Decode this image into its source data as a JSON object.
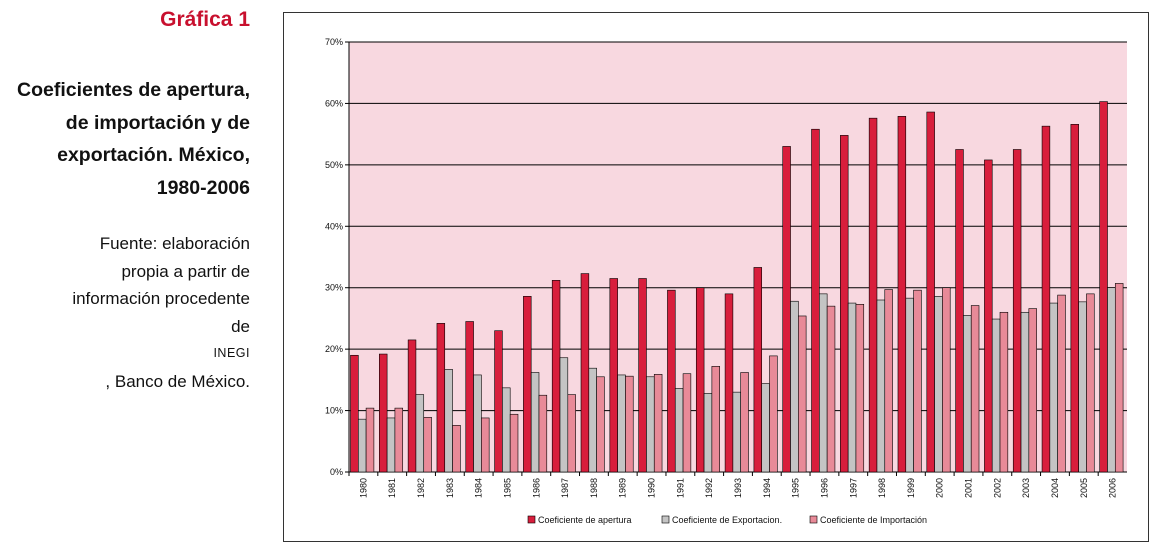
{
  "figure": {
    "label": "Gráfica 1",
    "title_lines": [
      "Coeficientes de apertura,",
      "de importación y de",
      "exportación. México,",
      "1980-2006"
    ],
    "source_lines": [
      "Fuente: elaboración",
      "propia a partir de",
      "información procedente"
    ],
    "source_last": {
      "prefix": "de ",
      "org": "INEGI",
      "suffix": ", Banco de México."
    }
  },
  "colors": {
    "plot_bg": "#f8d8e0",
    "apertura": "#d81e3c",
    "exportacion": "#c4c4c4",
    "importacion": "#e88a98",
    "grid": "#000000"
  },
  "chart_data": {
    "type": "bar",
    "categories": [
      "1980",
      "1981",
      "1982",
      "1983",
      "1984",
      "1985",
      "1986",
      "1987",
      "1988",
      "1989",
      "1990",
      "1991",
      "1992",
      "1993",
      "1994",
      "1995",
      "1996",
      "1997",
      "1998",
      "1999",
      "2000",
      "2001",
      "2002",
      "2003",
      "2004",
      "2005",
      "2006"
    ],
    "series": [
      {
        "name": "Coeficiente de apertura",
        "color": "#d81e3c",
        "values": [
          19,
          19.2,
          21.5,
          24.2,
          24.5,
          23,
          28.6,
          31.2,
          32.3,
          31.5,
          31.5,
          29.6,
          30,
          29,
          33.3,
          53,
          55.8,
          54.8,
          57.6,
          57.9,
          58.6,
          52.5,
          50.8,
          52.5,
          56.3,
          56.6,
          60.3
        ]
      },
      {
        "name": "Coeficiente de Exportacion.",
        "color": "#c4c4c4",
        "values": [
          8.6,
          8.8,
          12.6,
          16.7,
          15.8,
          13.7,
          16.2,
          18.6,
          16.9,
          15.8,
          15.5,
          13.6,
          12.8,
          13,
          14.4,
          27.8,
          29,
          27.5,
          28,
          28.3,
          28.6,
          25.5,
          24.9,
          26,
          27.5,
          27.7,
          30
        ]
      },
      {
        "name": "Coeficiente de Importación",
        "color": "#e88a98",
        "values": [
          10.4,
          10.4,
          8.9,
          7.6,
          8.8,
          9.4,
          12.5,
          12.6,
          15.5,
          15.6,
          15.9,
          16,
          17.2,
          16.2,
          18.9,
          25.4,
          27,
          27.3,
          29.7,
          29.6,
          30,
          27.1,
          26,
          26.6,
          28.8,
          29,
          30.7
        ]
      }
    ],
    "ylim": [
      0,
      70
    ],
    "yticks": [
      0,
      10,
      20,
      30,
      40,
      50,
      60,
      70
    ],
    "ytick_labels": [
      "0%",
      "10%",
      "20%",
      "30%",
      "40%",
      "50%",
      "60%",
      "70%"
    ],
    "grid": true,
    "legend_position": "bottom"
  }
}
